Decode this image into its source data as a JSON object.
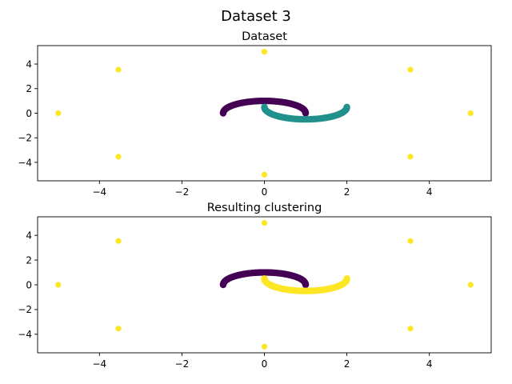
{
  "figure": {
    "title": "Dataset 3"
  },
  "colors": {
    "purple": "#440154",
    "teal": "#21918c",
    "yellow": "#fde725"
  },
  "chart_data": [
    {
      "type": "scatter",
      "title": "Dataset",
      "xlim": [
        -5.5,
        5.5
      ],
      "ylim": [
        -5.5,
        5.5
      ],
      "xticks": [
        -4,
        -2,
        0,
        2,
        4
      ],
      "yticks": [
        -4,
        -2,
        0,
        2,
        4
      ],
      "xlabel": "",
      "ylabel": "",
      "grid": false,
      "legend": "none",
      "series": [
        {
          "color": "#440154",
          "kind": "arc",
          "center": [
            0,
            0
          ],
          "radius": 1,
          "from_deg": 0,
          "to_deg": 180,
          "y_scale": 1.0
        },
        {
          "color": "#21918c",
          "kind": "arc",
          "center": [
            1,
            0.5
          ],
          "radius": 1,
          "from_deg": 180,
          "to_deg": 360,
          "y_scale": 1.0
        },
        {
          "color": "#fde725",
          "kind": "points",
          "points": [
            [
              5,
              0
            ],
            [
              3.54,
              3.54
            ],
            [
              0,
              5
            ],
            [
              -3.54,
              3.54
            ],
            [
              -5,
              0
            ],
            [
              -3.54,
              -3.54
            ],
            [
              0,
              -5
            ],
            [
              3.54,
              -3.54
            ]
          ]
        }
      ]
    },
    {
      "type": "scatter",
      "title": "Resulting clustering",
      "xlim": [
        -5.5,
        5.5
      ],
      "ylim": [
        -5.5,
        5.5
      ],
      "xticks": [
        -4,
        -2,
        0,
        2,
        4
      ],
      "yticks": [
        -4,
        -2,
        0,
        2,
        4
      ],
      "xlabel": "",
      "ylabel": "",
      "grid": false,
      "legend": "none",
      "series": [
        {
          "color": "#440154",
          "kind": "arc",
          "center": [
            0,
            0
          ],
          "radius": 1,
          "from_deg": 0,
          "to_deg": 180,
          "y_scale": 1.0
        },
        {
          "color": "#fde725",
          "kind": "arc",
          "center": [
            1,
            0.5
          ],
          "radius": 1,
          "from_deg": 180,
          "to_deg": 360,
          "y_scale": 1.0
        },
        {
          "color": "#fde725",
          "kind": "points",
          "points": [
            [
              5,
              0
            ],
            [
              3.54,
              3.54
            ],
            [
              0,
              5
            ],
            [
              -3.54,
              3.54
            ],
            [
              -5,
              0
            ],
            [
              -3.54,
              -3.54
            ],
            [
              0,
              -5
            ],
            [
              3.54,
              -3.54
            ]
          ]
        }
      ]
    }
  ]
}
